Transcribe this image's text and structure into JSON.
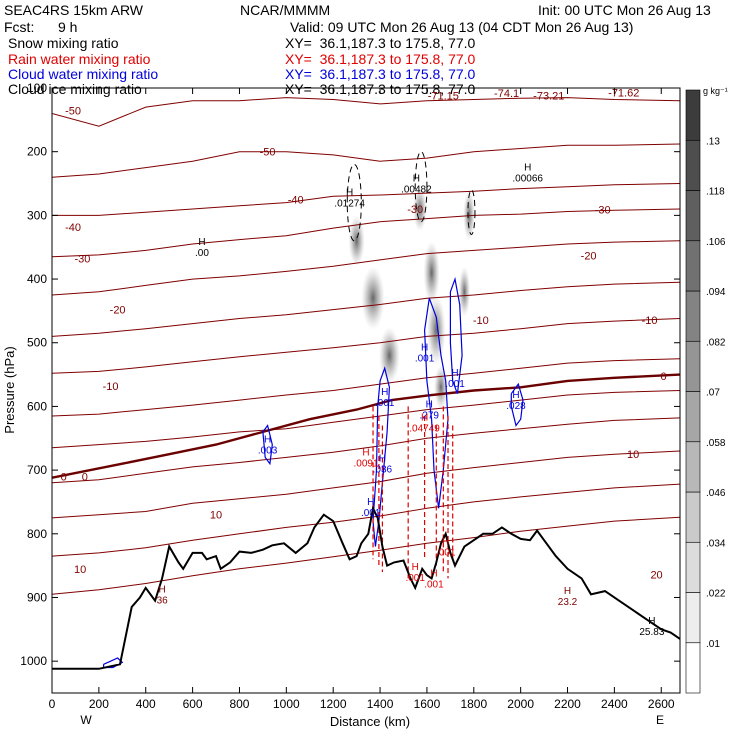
{
  "header": {
    "model": "SEAC4RS 15km ARW",
    "source": "NCAR/MMMM",
    "init": "Init: 00 UTC Mon 26 Aug 13",
    "fcst_label": "Fcst:",
    "fcst_value": "9 h",
    "valid": "Valid: 09 UTC Mon 26 Aug 13 (04 CDT Mon 26 Aug 13)",
    "fields": [
      {
        "name": "Snow mixing ratio",
        "xy": "XY=  36.1,187.3 to 175.8, 77.0",
        "color": "#000000"
      },
      {
        "name": "Rain water mixing ratio",
        "xy": "XY=  36.1,187.3 to 175.8, 77.0",
        "color": "#e00000"
      },
      {
        "name": "Cloud water mixing ratio",
        "xy": "XY=  36.1,187.3 to 175.8, 77.0",
        "color": "#0000dd"
      },
      {
        "name": "Cloud ice mixing ratio",
        "xy": "XY=  36.1,187.3 to 175.8, 77.0",
        "color": "#000000"
      }
    ]
  },
  "colors": {
    "isotherm": "#800000",
    "freezing": "#6b0000",
    "terrain": "#000000",
    "rain": "#e00000",
    "cloud_water": "#0000dd"
  },
  "chart_data": {
    "type": "contour-cross-section",
    "xlabel": "Distance (km)",
    "ylabel": "Pressure (hPa)",
    "xlim": [
      0,
      2680
    ],
    "ylim": [
      1050,
      100
    ],
    "x_ticks": [
      "0",
      "200",
      "400",
      "600",
      "800",
      "1000",
      "1200",
      "1400",
      "1600",
      "1800",
      "2000",
      "2200",
      "2400",
      "2600"
    ],
    "y_ticks": [
      "100",
      "200",
      "300",
      "400",
      "500",
      "600",
      "700",
      "800",
      "900",
      "1000"
    ],
    "x_end_labels": {
      "left": "W",
      "right": "E"
    },
    "colorbar": {
      "unit": "g kg⁻¹",
      "ticks": [
        ".01",
        ".022",
        ".034",
        ".046",
        ".058",
        ".07",
        ".082",
        ".094",
        ".106",
        ".118",
        ".13"
      ]
    },
    "terrain_pressure": [
      [
        0,
        1012
      ],
      [
        100,
        1012
      ],
      [
        200,
        1012
      ],
      [
        290,
        1005
      ],
      [
        340,
        915
      ],
      [
        375,
        900
      ],
      [
        400,
        885
      ],
      [
        440,
        905
      ],
      [
        470,
        870
      ],
      [
        500,
        820
      ],
      [
        540,
        845
      ],
      [
        560,
        855
      ],
      [
        600,
        830
      ],
      [
        640,
        830
      ],
      [
        660,
        840
      ],
      [
        700,
        835
      ],
      [
        720,
        855
      ],
      [
        760,
        845
      ],
      [
        800,
        828
      ],
      [
        850,
        830
      ],
      [
        900,
        825
      ],
      [
        940,
        818
      ],
      [
        990,
        815
      ],
      [
        1040,
        830
      ],
      [
        1090,
        815
      ],
      [
        1120,
        790
      ],
      [
        1160,
        770
      ],
      [
        1200,
        780
      ],
      [
        1240,
        815
      ],
      [
        1270,
        840
      ],
      [
        1300,
        835
      ],
      [
        1320,
        815
      ],
      [
        1350,
        800
      ],
      [
        1370,
        760
      ],
      [
        1390,
        775
      ],
      [
        1410,
        820
      ],
      [
        1430,
        850
      ],
      [
        1460,
        845
      ],
      [
        1500,
        842
      ],
      [
        1530,
        870
      ],
      [
        1550,
        885
      ],
      [
        1580,
        855
      ],
      [
        1600,
        865
      ],
      [
        1620,
        870
      ],
      [
        1640,
        845
      ],
      [
        1660,
        815
      ],
      [
        1680,
        800
      ],
      [
        1700,
        830
      ],
      [
        1720,
        850
      ],
      [
        1760,
        820
      ],
      [
        1800,
        810
      ],
      [
        1840,
        800
      ],
      [
        1880,
        800
      ],
      [
        1920,
        790
      ],
      [
        1960,
        800
      ],
      [
        2000,
        808
      ],
      [
        2040,
        810
      ],
      [
        2070,
        795
      ],
      [
        2100,
        810
      ],
      [
        2150,
        835
      ],
      [
        2200,
        855
      ],
      [
        2260,
        870
      ],
      [
        2300,
        895
      ],
      [
        2360,
        890
      ],
      [
        2420,
        905
      ],
      [
        2480,
        920
      ],
      [
        2540,
        935
      ],
      [
        2600,
        950
      ],
      [
        2640,
        955
      ],
      [
        2680,
        965
      ]
    ],
    "temperature_contour_labels": [
      {
        "text": "-71.15",
        "x": 1670,
        "p": 112
      },
      {
        "text": "-74.1",
        "x": 1940,
        "p": 108
      },
      {
        "text": "-73.21",
        "x": 2120,
        "p": 112
      },
      {
        "text": "-71.62",
        "x": 2440,
        "p": 107
      },
      {
        "text": "-50",
        "x": 90,
        "p": 135
      },
      {
        "text": "-50",
        "x": 920,
        "p": 200
      },
      {
        "text": "-40",
        "x": 90,
        "p": 318
      },
      {
        "text": "-40",
        "x": 1040,
        "p": 275
      },
      {
        "text": "-30",
        "x": 130,
        "p": 368
      },
      {
        "text": "-30",
        "x": 1550,
        "p": 290
      },
      {
        "text": "-30",
        "x": 2350,
        "p": 291
      },
      {
        "text": "-20",
        "x": 280,
        "p": 448
      },
      {
        "text": "-20",
        "x": 2290,
        "p": 363
      },
      {
        "text": "-10",
        "x": 250,
        "p": 568
      },
      {
        "text": "-10",
        "x": 1830,
        "p": 464
      },
      {
        "text": "-10",
        "x": 2550,
        "p": 464
      },
      {
        "text": "0",
        "x": 2610,
        "p": 552
      },
      {
        "text": "0",
        "x": 50,
        "p": 710
      },
      {
        "text": "0",
        "x": 140,
        "p": 710
      },
      {
        "text": "10",
        "x": 700,
        "p": 770
      },
      {
        "text": "10",
        "x": 2480,
        "p": 675
      },
      {
        "text": "10",
        "x": 120,
        "p": 855
      },
      {
        "text": "20",
        "x": 2580,
        "p": 864
      }
    ],
    "extrema": [
      {
        "mark": "H",
        "value": ".00",
        "x": 640,
        "p": 350,
        "color": "#000000"
      },
      {
        "mark": "H",
        "value": ".01274",
        "x": 1270,
        "p": 272,
        "color": "#000000"
      },
      {
        "mark": "H",
        "value": ".00482",
        "x": 1555,
        "p": 250,
        "color": "#000000"
      },
      {
        "mark": "H",
        "value": ".00066",
        "x": 2030,
        "p": 233,
        "color": "#000000"
      },
      {
        "mark": "H",
        "value": ".003",
        "x": 920,
        "p": 660,
        "color": "#0000dd"
      },
      {
        "mark": "H",
        "value": ".028",
        "x": 1980,
        "p": 590,
        "color": "#0000dd"
      },
      {
        "mark": "H",
        "value": ".036",
        "x": 1410,
        "p": 690,
        "color": "#0000dd"
      },
      {
        "mark": "H",
        "value": ".001",
        "x": 1420,
        "p": 585,
        "color": "#0000dd"
      },
      {
        "mark": "H",
        "value": ".001",
        "x": 1360,
        "p": 758,
        "color": "#0000dd"
      },
      {
        "mark": "H",
        "value": ".001",
        "x": 1590,
        "p": 515,
        "color": "#0000dd"
      },
      {
        "mark": "H",
        "value": ".001",
        "x": 1720,
        "p": 555,
        "color": "#0000dd"
      },
      {
        "mark": "H",
        "value": ".279",
        "x": 1610,
        "p": 605,
        "color": "#0000dd"
      },
      {
        "mark": "H",
        "value": ".0091",
        "x": 1340,
        "p": 680,
        "color": "#e00000"
      },
      {
        "mark": "H",
        "value": ".04749",
        "x": 1590,
        "p": 625,
        "color": "#e00000"
      },
      {
        "mark": "H",
        "value": ".001",
        "x": 1550,
        "p": 860,
        "color": "#e00000"
      },
      {
        "mark": "H",
        "value": ".001",
        "x": 1680,
        "p": 820,
        "color": "#e00000"
      },
      {
        "mark": "H",
        "value": ".001",
        "x": 1630,
        "p": 870,
        "color": "#e00000"
      },
      {
        "mark": "H",
        "value": "36",
        "x": 470,
        "p": 895,
        "color": "#800000"
      },
      {
        "mark": "H",
        "value": "23.2",
        "x": 2200,
        "p": 898,
        "color": "#800000"
      },
      {
        "mark": "H",
        "value": "25.83",
        "x": 2560,
        "p": 945,
        "color": "#000000"
      }
    ]
  }
}
